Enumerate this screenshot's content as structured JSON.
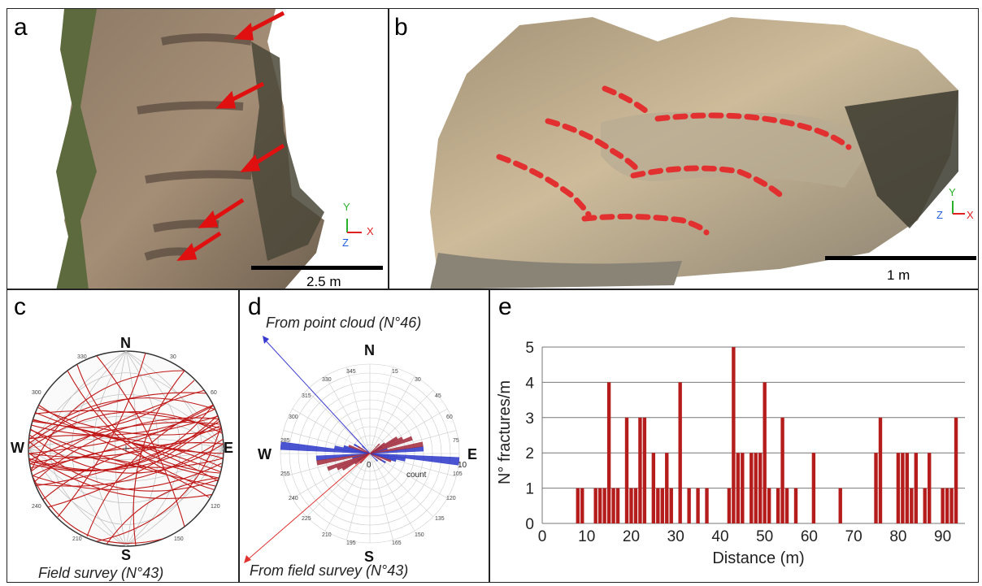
{
  "panels": {
    "a": {
      "label": "a",
      "scale_text": "2.5 m",
      "axis_y": "Y",
      "axis_x": "X",
      "axis_z": "Z"
    },
    "b": {
      "label": "b",
      "scale_text": "1 m",
      "axis_y": "Y",
      "axis_x": "X",
      "axis_z": "Z"
    },
    "c": {
      "label": "c",
      "caption": "Field survey (N°43)",
      "north": "N",
      "south": "S",
      "west": "W",
      "east": "E",
      "ticks": [
        "330",
        "30",
        "300",
        "60",
        "240",
        "120",
        "210",
        "150"
      ]
    },
    "d": {
      "label": "d",
      "caption_top": "From point cloud (N°46)",
      "caption_bottom": "From field survey (N°43)",
      "north": "N",
      "south": "S",
      "west": "W",
      "east": "E",
      "ticks": [
        "345",
        "15",
        "330",
        "30",
        "315",
        "45",
        "300",
        "60",
        "285",
        "75",
        "255",
        "105",
        "240",
        "120",
        "225",
        "135",
        "210",
        "150",
        "195",
        "165"
      ],
      "count_label": "count",
      "radial_max": "10",
      "center": "0",
      "colors": {
        "point_cloud": "#2a35c8",
        "field_survey": "#a0283a"
      }
    },
    "e": {
      "label": "e"
    }
  },
  "chart_data": {
    "type": "bar",
    "xlabel": "Distance (m)",
    "ylabel": "N° fractures/m",
    "xlim": [
      0,
      95
    ],
    "ylim": [
      0,
      5
    ],
    "xticks": [
      "0",
      "10",
      "20",
      "30",
      "40",
      "50",
      "60",
      "70",
      "80",
      "90"
    ],
    "yticks": [
      "0",
      "1",
      "2",
      "3",
      "4",
      "5"
    ],
    "grid": "horizontal",
    "bar_color": "#b51c1c",
    "x": [
      8,
      9,
      12,
      13,
      14,
      15,
      16,
      17,
      19,
      20,
      21,
      22,
      23,
      25,
      26,
      27,
      28,
      29,
      31,
      33,
      35,
      37,
      42,
      43,
      44,
      45,
      47,
      48,
      49,
      50,
      51,
      53,
      54,
      55,
      57,
      61,
      67,
      75,
      76,
      80,
      81,
      82,
      83,
      84,
      86,
      87,
      90,
      91,
      92,
      93
    ],
    "values": [
      1,
      1,
      1,
      1,
      1,
      4,
      1,
      1,
      3,
      1,
      1,
      3,
      3,
      2,
      1,
      1,
      2,
      1,
      4,
      1,
      1,
      1,
      1,
      5,
      2,
      2,
      2,
      2,
      2,
      4,
      1,
      1,
      3,
      1,
      1,
      2,
      1,
      2,
      3,
      2,
      2,
      2,
      1,
      2,
      1,
      2,
      1,
      1,
      1,
      3
    ]
  }
}
